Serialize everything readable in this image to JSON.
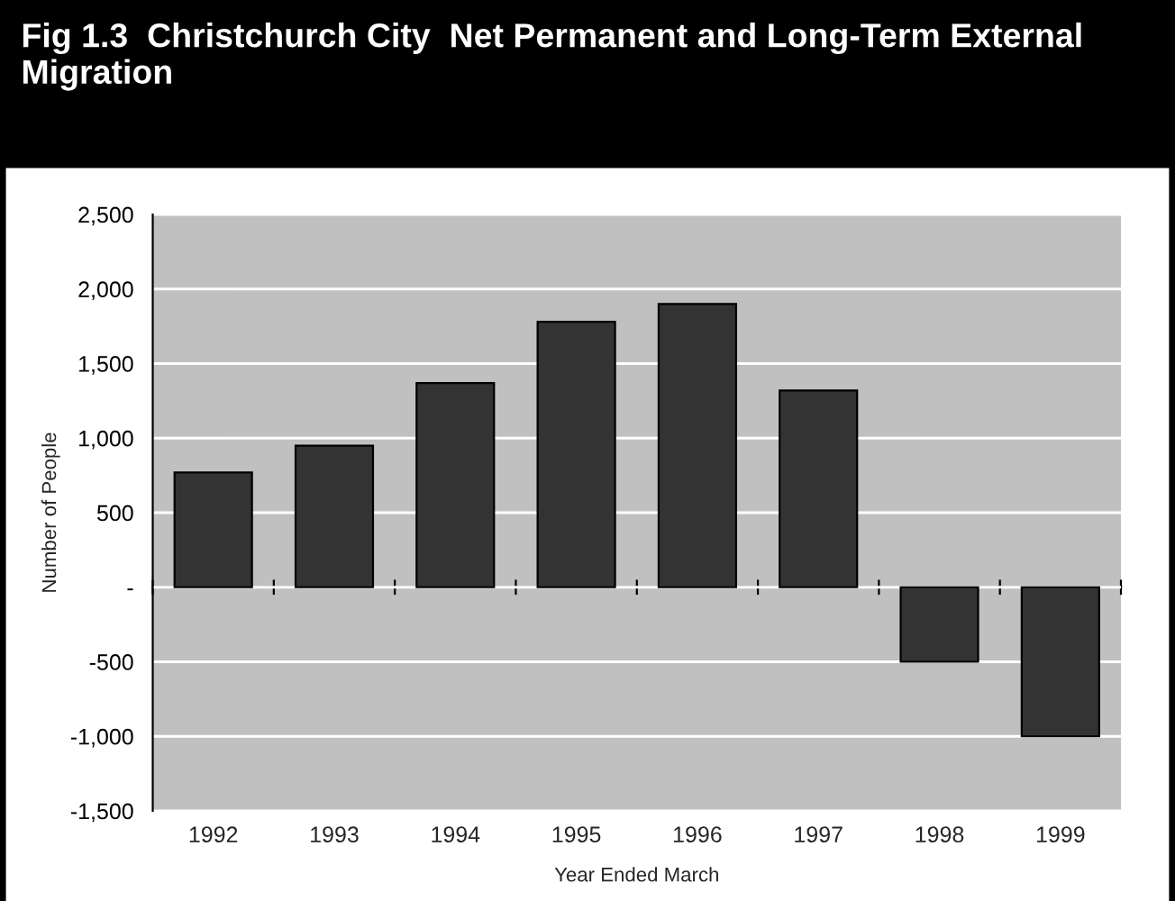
{
  "chart_data": {
    "type": "bar",
    "title": "Fig 1.3  Christchurch City  Net Permanent and Long-Term External Migration",
    "xlabel": "Year Ended March",
    "ylabel": "Number of People",
    "categories": [
      "1992",
      "1993",
      "1994",
      "1995",
      "1996",
      "1997",
      "1998",
      "1999"
    ],
    "values": [
      770,
      950,
      1370,
      1780,
      1900,
      1320,
      -500,
      -1000
    ],
    "color": "#333333",
    "ylim": [
      -1500,
      2500
    ],
    "yticks": [
      {
        "value": -1500,
        "label": "-1,500"
      },
      {
        "value": -1000,
        "label": "-1,000"
      },
      {
        "value": -500,
        "label": "-500"
      },
      {
        "value": 0,
        "label": "-"
      },
      {
        "value": 500,
        "label": "500"
      },
      {
        "value": 1000,
        "label": "1,000"
      },
      {
        "value": 1500,
        "label": "1,500"
      },
      {
        "value": 2000,
        "label": "2,000"
      },
      {
        "value": 2500,
        "label": "2,500"
      }
    ],
    "grid": "y"
  }
}
